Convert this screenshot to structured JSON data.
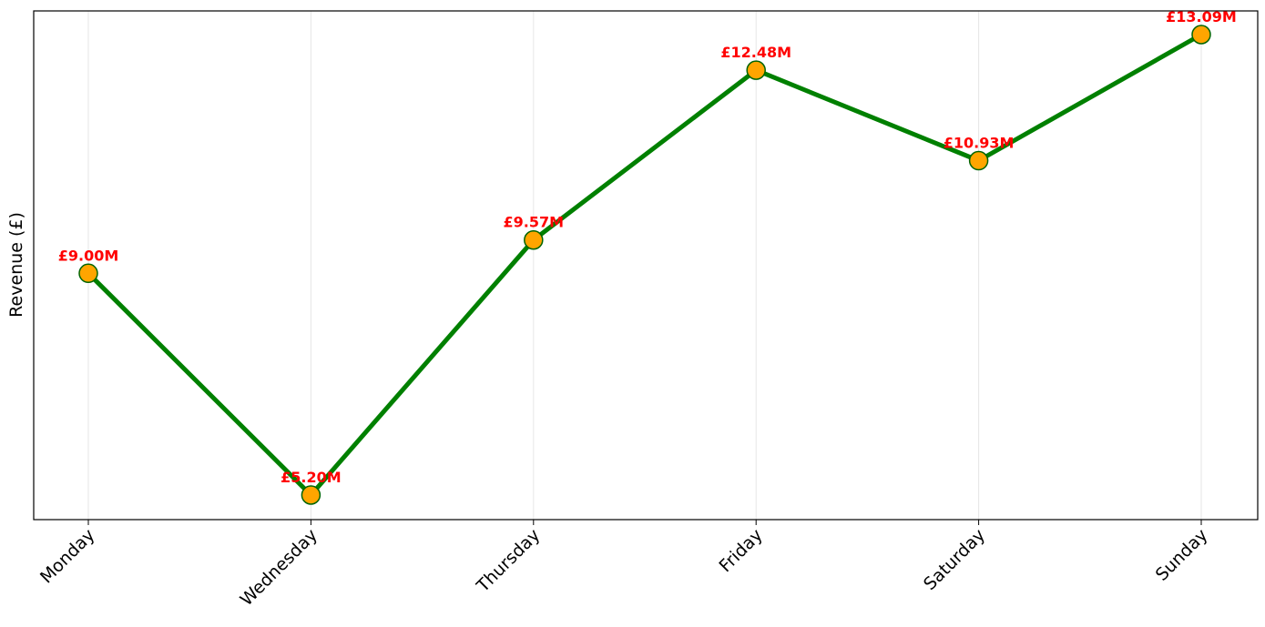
{
  "chart_data": {
    "type": "line",
    "categories": [
      "Monday",
      "Wednesday",
      "Thursday",
      "Friday",
      "Saturday",
      "Sunday"
    ],
    "series": [
      {
        "values": [
          9.0,
          5.2,
          9.57,
          12.48,
          10.93,
          13.09
        ]
      }
    ],
    "data_labels": [
      "£9.00M",
      "£5.20M",
      "£9.57M",
      "£12.48M",
      "£10.93M",
      "£13.09M"
    ],
    "ylabel": "Revenue (£)",
    "xlabel": "",
    "title": "",
    "y_ticks_shown": false,
    "x_tick_rotation": "45 degrees",
    "grid": "vertical only",
    "colors": {
      "line": "#008000",
      "marker_fill": "#FFA500",
      "marker_edge": "#006400",
      "data_label": "#FF0000",
      "grid": "#e6e6e6"
    }
  }
}
